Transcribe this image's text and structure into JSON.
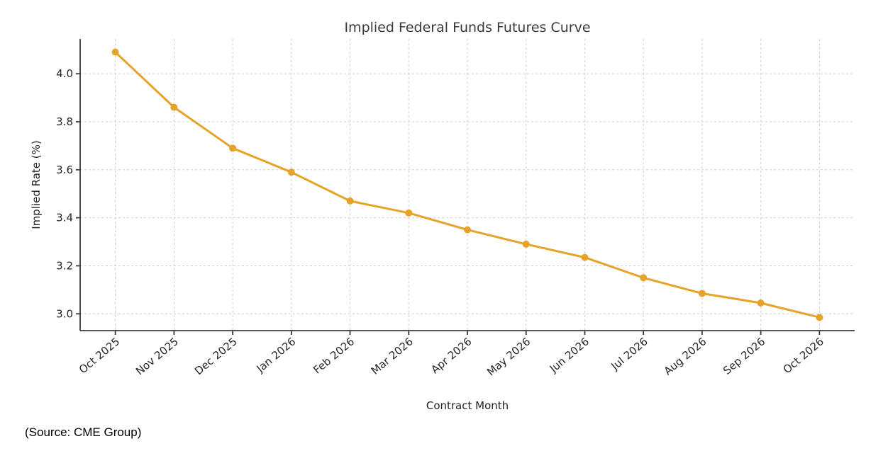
{
  "page": {
    "source_note": "(Source: CME Group)"
  },
  "chart_data": {
    "type": "line",
    "title": "Implied Federal Funds Futures Curve",
    "xlabel": "Contract Month",
    "ylabel": "Implied Rate (%)",
    "categories": [
      "Oct 2025",
      "Nov 2025",
      "Dec 2025",
      "Jan 2026",
      "Feb 2026",
      "Mar 2026",
      "Apr 2026",
      "May 2026",
      "Jun 2026",
      "Jul 2026",
      "Aug 2026",
      "Sep 2026",
      "Oct 2026"
    ],
    "series": [
      {
        "name": "Implied Rate",
        "values": [
          4.09,
          3.86,
          3.69,
          3.59,
          3.47,
          3.42,
          3.35,
          3.29,
          3.235,
          3.15,
          3.085,
          3.045,
          2.985
        ]
      }
    ],
    "yticks": [
      3.0,
      3.2,
      3.4,
      3.6,
      3.8,
      4.0
    ],
    "ylim": [
      2.93,
      4.145
    ],
    "x_margin": 0.6,
    "grid": true,
    "grid_style": "dashed",
    "legend": "none",
    "line_color": "#E7A229",
    "marker": "circle",
    "x_tick_rotation_deg": 40
  }
}
